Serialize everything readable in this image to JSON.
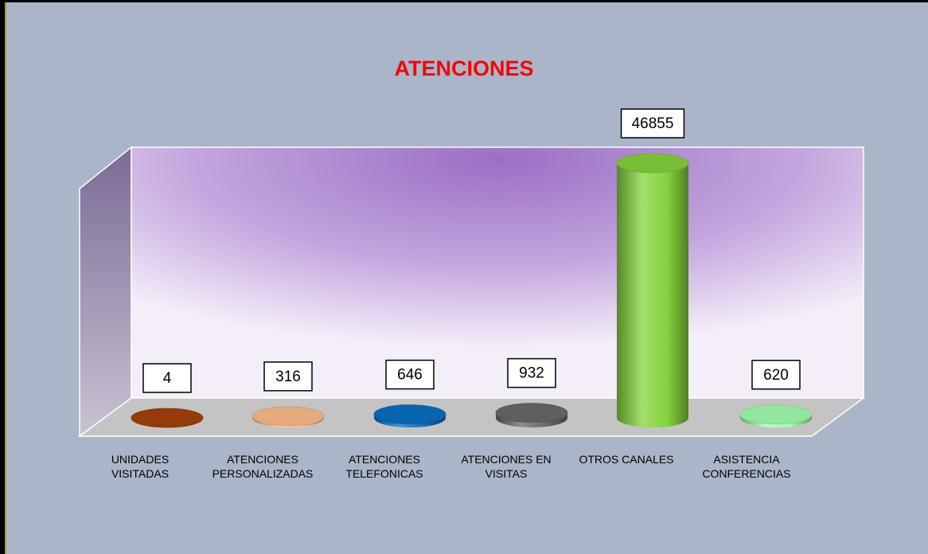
{
  "chart_data": {
    "type": "bar3d",
    "title": "ATENCIONES",
    "categories": [
      "UNIDADES VISITADAS",
      "ATENCIONES PERSONALIZADAS",
      "ATENCIONES TELEFONICAS",
      "ATENCIONES EN VISITAS",
      "OTROS CANALES",
      "ASISTENCIA CONFERENCIAS"
    ],
    "values": [
      4,
      316,
      646,
      932,
      46855,
      620
    ],
    "colors": [
      "#a3410b",
      "#ffbd8c",
      "#0a6fc2",
      "#6a6a6a",
      "#84d33c",
      "#a2ffb0"
    ]
  }
}
